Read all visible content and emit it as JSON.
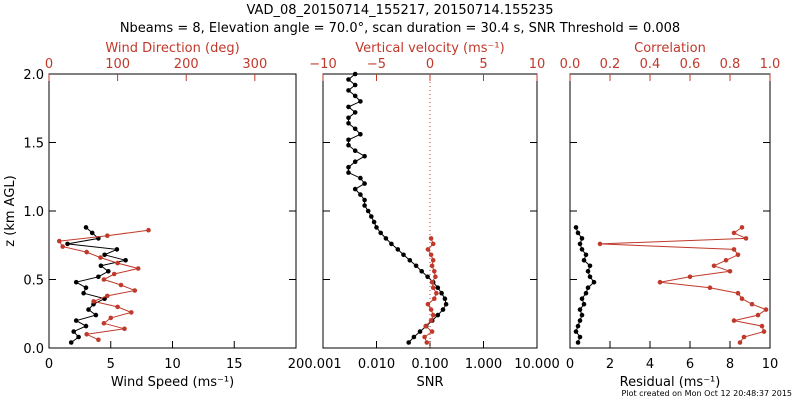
{
  "title_line1": "VAD_08_20150714_155217, 20150714.155235",
  "title_line2": "Nbeams = 8, Elevation angle = 70.0°, scan duration = 30.4 s, SNR Threshold = 0.008",
  "footer": "Plot created on Mon Oct 12 20:48:37 2015",
  "colors": {
    "primary": "#000000",
    "secondary": "#c0392b"
  },
  "chart_data": [
    {
      "type": "line",
      "panel": "wind",
      "ylabel": "z (km AGL)",
      "ylim": [
        0,
        2
      ],
      "yticks": [
        0,
        0.5,
        1.0,
        1.5,
        2.0
      ],
      "ytick_labels": [
        "0.0",
        "0.5",
        "1.0",
        "1.5",
        "2.0"
      ],
      "bottom_axis": {
        "label": "Wind Speed (ms⁻¹)",
        "lim": [
          0,
          20
        ],
        "ticks": [
          0,
          5,
          10,
          15,
          20
        ],
        "tick_labels": [
          "0",
          "5",
          "10",
          "15",
          "20"
        ]
      },
      "top_axis": {
        "label": "Wind Direction (deg)",
        "lim": [
          0,
          360
        ],
        "ticks": [
          0,
          100,
          200,
          300
        ],
        "tick_labels": [
          "0",
          "100",
          "200",
          "300"
        ]
      },
      "series": [
        {
          "name": "Wind Speed",
          "axis": "bottom",
          "color": "#000000",
          "z": [
            0.04,
            0.08,
            0.12,
            0.16,
            0.2,
            0.24,
            0.28,
            0.32,
            0.36,
            0.4,
            0.44,
            0.48,
            0.52,
            0.56,
            0.6,
            0.64,
            0.68,
            0.72,
            0.76,
            0.8,
            0.84,
            0.88
          ],
          "values": [
            1.8,
            2.4,
            2.0,
            3.0,
            2.2,
            3.8,
            3.2,
            3.6,
            4.5,
            2.8,
            3.0,
            2.2,
            4.0,
            4.8,
            4.2,
            6.2,
            4.5,
            5.5,
            1.5,
            4.0,
            3.5,
            3.0
          ]
        },
        {
          "name": "Wind Direction",
          "axis": "top",
          "color": "#c0392b",
          "z": [
            0.06,
            0.1,
            0.14,
            0.18,
            0.22,
            0.26,
            0.3,
            0.34,
            0.38,
            0.42,
            0.46,
            0.5,
            0.54,
            0.58,
            0.62,
            0.66,
            0.7,
            0.74,
            0.78,
            0.82,
            0.86
          ],
          "values": [
            72,
            55,
            110,
            80,
            90,
            120,
            100,
            65,
            85,
            125,
            105,
            80,
            95,
            130,
            100,
            75,
            55,
            20,
            15,
            85,
            145
          ]
        }
      ]
    },
    {
      "type": "line",
      "panel": "snr",
      "ylim": [
        0,
        2
      ],
      "bottom_axis": {
        "label": "SNR",
        "scale": "log",
        "lim": [
          0.001,
          10
        ],
        "ticks": [
          0.001,
          0.01,
          0.1,
          1,
          10
        ],
        "tick_labels": [
          "0.001",
          "0.010",
          "0.100",
          "1.000",
          "10.000"
        ]
      },
      "top_axis": {
        "label": "Vertical velocity (ms⁻¹)",
        "lim": [
          -10,
          10
        ],
        "ticks": [
          -10,
          -5,
          0,
          5,
          10
        ],
        "tick_labels": [
          "−10",
          "−5",
          "0",
          "5",
          "10"
        ]
      },
      "series": [
        {
          "name": "SNR",
          "axis": "bottom",
          "color": "#000000",
          "z": [
            0.04,
            0.08,
            0.12,
            0.16,
            0.2,
            0.24,
            0.28,
            0.32,
            0.36,
            0.4,
            0.44,
            0.48,
            0.52,
            0.56,
            0.6,
            0.64,
            0.68,
            0.72,
            0.76,
            0.8,
            0.84,
            0.88,
            0.92,
            0.96,
            1.0,
            1.04,
            1.08,
            1.12,
            1.16,
            1.2,
            1.24,
            1.28,
            1.32,
            1.36,
            1.4,
            1.44,
            1.48,
            1.52,
            1.56,
            1.6,
            1.64,
            1.68,
            1.72,
            1.76,
            1.8,
            1.84,
            1.88,
            1.92,
            1.96,
            2.0
          ],
          "values": [
            0.04,
            0.05,
            0.065,
            0.085,
            0.11,
            0.14,
            0.175,
            0.2,
            0.19,
            0.165,
            0.14,
            0.115,
            0.09,
            0.07,
            0.055,
            0.042,
            0.032,
            0.025,
            0.019,
            0.015,
            0.012,
            0.01,
            0.009,
            0.008,
            0.007,
            0.006,
            0.006,
            0.005,
            0.004,
            0.006,
            0.005,
            0.003,
            0.003,
            0.004,
            0.006,
            0.004,
            0.003,
            0.003,
            0.005,
            0.004,
            0.003,
            0.003,
            0.004,
            0.003,
            0.005,
            0.004,
            0.003,
            0.004,
            0.003,
            0.004
          ]
        },
        {
          "name": "Vertical velocity",
          "axis": "top",
          "color": "#c0392b",
          "z": [
            0.04,
            0.08,
            0.12,
            0.16,
            0.2,
            0.24,
            0.28,
            0.32,
            0.36,
            0.4,
            0.44,
            0.48,
            0.52,
            0.56,
            0.6,
            0.64,
            0.68,
            0.72,
            0.76,
            0.8
          ],
          "values": [
            -0.3,
            -0.5,
            0.2,
            -0.4,
            0.1,
            0.3,
            0.1,
            -0.2,
            0.4,
            0.6,
            0.3,
            0.2,
            0.5,
            0.4,
            0.2,
            0.3,
            0.1,
            -0.2,
            0.3,
            0.1
          ]
        }
      ],
      "reference_line": {
        "axis": "top",
        "value": 0,
        "color": "#c0392b",
        "style": "dotted"
      }
    },
    {
      "type": "line",
      "panel": "residual",
      "ylim": [
        0,
        2
      ],
      "bottom_axis": {
        "label": "Residual (ms⁻¹)",
        "lim": [
          0,
          10
        ],
        "ticks": [
          0,
          2,
          4,
          6,
          8,
          10
        ],
        "tick_labels": [
          "0",
          "2",
          "4",
          "6",
          "8",
          "10"
        ]
      },
      "top_axis": {
        "label": "Correlation",
        "lim": [
          0,
          1
        ],
        "ticks": [
          0,
          0.2,
          0.4,
          0.6,
          0.8,
          1.0
        ],
        "tick_labels": [
          "0.0",
          "0.2",
          "0.4",
          "0.6",
          "0.8",
          "1.0"
        ]
      },
      "series": [
        {
          "name": "Residual",
          "axis": "bottom",
          "color": "#000000",
          "z": [
            0.04,
            0.08,
            0.12,
            0.16,
            0.2,
            0.24,
            0.28,
            0.32,
            0.36,
            0.4,
            0.44,
            0.48,
            0.52,
            0.56,
            0.6,
            0.64,
            0.68,
            0.72,
            0.76,
            0.8,
            0.84,
            0.88
          ],
          "values": [
            0.4,
            0.5,
            0.3,
            0.4,
            0.5,
            0.6,
            0.5,
            0.7,
            0.6,
            0.8,
            0.9,
            1.2,
            1.0,
            0.9,
            1.0,
            0.7,
            0.8,
            0.6,
            0.5,
            0.6,
            0.4,
            0.3
          ]
        },
        {
          "name": "Correlation",
          "axis": "top",
          "color": "#c0392b",
          "z": [
            0.04,
            0.08,
            0.12,
            0.16,
            0.2,
            0.24,
            0.28,
            0.32,
            0.36,
            0.4,
            0.44,
            0.48,
            0.52,
            0.56,
            0.6,
            0.64,
            0.68,
            0.72,
            0.76,
            0.8,
            0.84,
            0.88
          ],
          "values": [
            0.85,
            0.87,
            0.97,
            0.96,
            0.82,
            0.94,
            0.98,
            0.91,
            0.86,
            0.84,
            0.7,
            0.45,
            0.6,
            0.8,
            0.72,
            0.78,
            0.84,
            0.82,
            0.15,
            0.88,
            0.82,
            0.86
          ]
        }
      ]
    }
  ]
}
